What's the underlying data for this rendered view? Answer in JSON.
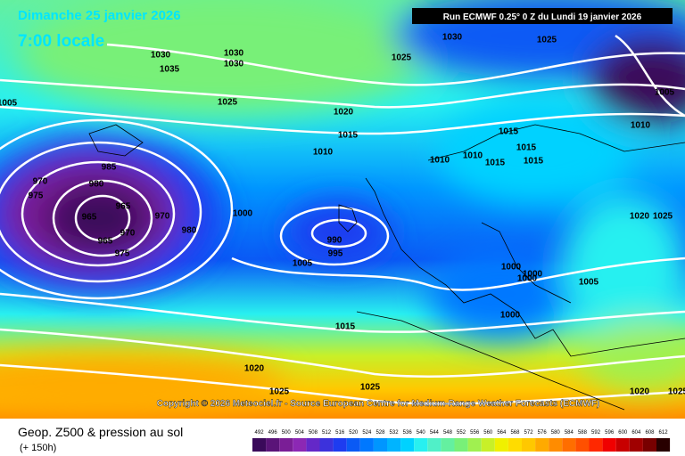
{
  "header": {
    "date": "Dimanche 25 janvier 2026",
    "time": "7:00 locale",
    "run": "Run ECMWF 0.25° 0 Z du Lundi 19 janvier 2026",
    "copyright": "Copyright © 2026 Meteociel.fr - Source European Centre for Medium-Range Weather Forecasts (ECMWF)"
  },
  "footer": {
    "title": "Geop. Z500 & pression au sol",
    "lead": "(+ 150h)"
  },
  "isobar_labels": [
    1030,
    1035,
    1030,
    1030,
    1025,
    1025,
    1030,
    1025,
    1020,
    1015,
    1010,
    1010,
    1015,
    1015,
    1015,
    1015,
    1010,
    1010,
    1005,
    1005,
    985,
    980,
    970,
    975,
    965,
    965,
    970,
    970,
    965,
    975,
    980,
    1000,
    990,
    995,
    1005,
    1000,
    1000,
    1000,
    1000,
    1005,
    1015,
    1020,
    1025,
    1025,
    1020,
    1025,
    1020,
    1025
  ],
  "scale": {
    "values": [
      492,
      496,
      500,
      504,
      508,
      512,
      516,
      520,
      524,
      528,
      532,
      536,
      540,
      544,
      548,
      552,
      556,
      560,
      564,
      568,
      572,
      576,
      580,
      584,
      588,
      592,
      596,
      600,
      604,
      608,
      612
    ],
    "colors": [
      "#3a0a5a",
      "#5a1478",
      "#7a1e96",
      "#8c28b4",
      "#6428c8",
      "#3c32dc",
      "#1e3cf0",
      "#0a5af5",
      "#0078ff",
      "#0096ff",
      "#00b4ff",
      "#00d2ff",
      "#28f0f0",
      "#50f0c8",
      "#64f0a0",
      "#78f078",
      "#a0f050",
      "#c8f028",
      "#f0f000",
      "#ffdc00",
      "#ffc800",
      "#ffaa00",
      "#ff8c00",
      "#ff6e00",
      "#ff5000",
      "#ff2800",
      "#f00000",
      "#c80000",
      "#a00000",
      "#780000",
      "#280000"
    ]
  }
}
